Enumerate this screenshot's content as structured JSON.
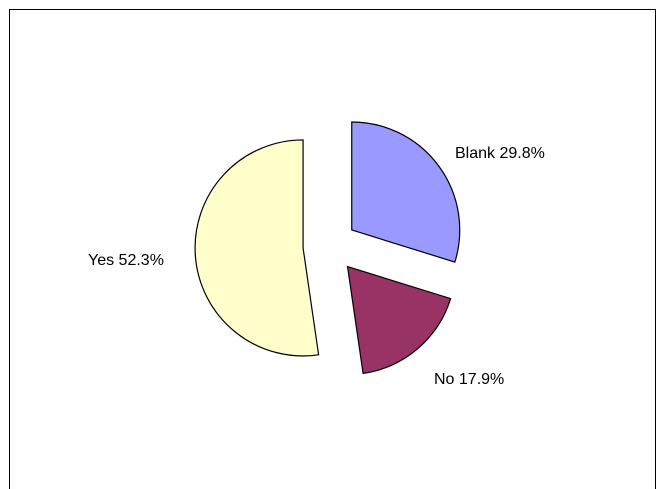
{
  "chart_data": {
    "type": "pie",
    "exploded": true,
    "slices": [
      {
        "name": "Blank",
        "value": 29.8,
        "label": "Blank 29.8%",
        "color": "#9999ff"
      },
      {
        "name": "No",
        "value": 17.9,
        "label": "No 17.9%",
        "color": "#993366"
      },
      {
        "name": "Yes",
        "value": 52.3,
        "label": "Yes 52.3%",
        "color": "#ffffcc"
      }
    ],
    "title": "",
    "legend": "none"
  }
}
